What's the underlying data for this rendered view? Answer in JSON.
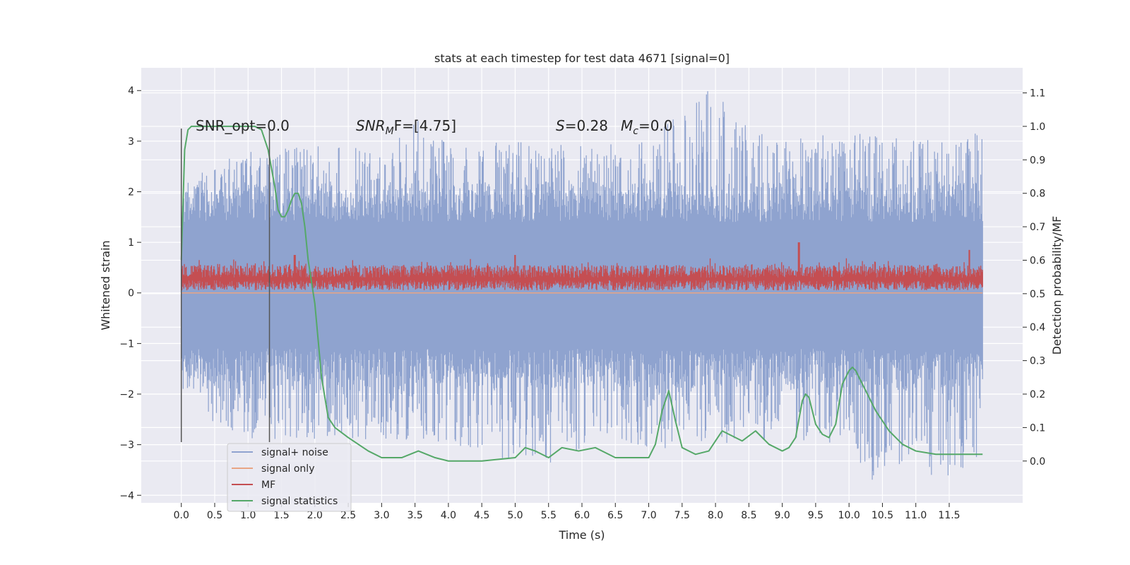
{
  "chart_data": {
    "type": "line",
    "title": "stats at each timestep for test data 4671 [signal=0]",
    "xlabel": "Time (s)",
    "ylabel": "Whitened strain",
    "y2label": "Detection probability/MF",
    "xlim": [
      -0.6,
      12.6
    ],
    "ylim": [
      -4.15,
      4.45
    ],
    "y2lim": [
      -0.125,
      1.175
    ],
    "xticks": [
      0.0,
      0.5,
      1.0,
      1.5,
      2.0,
      2.5,
      3.0,
      3.5,
      4.0,
      4.5,
      5.0,
      5.5,
      6.0,
      6.5,
      7.0,
      7.5,
      8.0,
      8.5,
      9.0,
      9.5,
      10.0,
      10.5,
      11.0,
      11.5
    ],
    "xtick_labels": [
      "0.0",
      "0.5",
      "1.0",
      "1.5",
      "2.0",
      "2.5",
      "3.0",
      "3.5",
      "4.0",
      "4.5",
      "5.0",
      "5.5",
      "6.0",
      "6.5",
      "7.0",
      "7.5",
      "8.0",
      "8.5",
      "9.0",
      "9.5",
      "10.0",
      "10.5",
      "11.0",
      "11.5"
    ],
    "yticks": [
      -4,
      -3,
      -2,
      -1,
      0,
      1,
      2,
      3,
      4
    ],
    "ytick_labels": [
      "−4",
      "−3",
      "−2",
      "−1",
      "0",
      "1",
      "2",
      "3",
      "4"
    ],
    "y2ticks": [
      0.0,
      0.1,
      0.2,
      0.3,
      0.4,
      0.5,
      0.6,
      0.7,
      0.8,
      0.9,
      1.0,
      1.1
    ],
    "y2tick_labels": [
      "0.0",
      "0.1",
      "0.2",
      "0.3",
      "0.4",
      "0.5",
      "0.6",
      "0.7",
      "0.8",
      "0.9",
      "1.0",
      "1.1"
    ],
    "grid": true,
    "legend_position": "lower-left",
    "annotations": {
      "snr_opt": "SNR_opt=0.0",
      "snr_mf_prefix": "SNR",
      "snr_mf_sub": "M",
      "snr_mf_suffix": "F=[4.75]",
      "s_var": "S",
      "s_value": "=0.28",
      "mc_var": "M",
      "mc_sub": "c",
      "mc_value": "=0.0"
    },
    "vlines": [
      0.0,
      1.32
    ],
    "vline_range": [
      -2.95,
      3.25
    ],
    "series": [
      {
        "name": "signal+ noise",
        "color": "#8fa3cf",
        "axis": "left",
        "kind": "noise",
        "x_range": [
          0.0,
          12.0
        ],
        "upper_envelope": [
          [
            0.0,
            2.0
          ],
          [
            0.5,
            2.6
          ],
          [
            1.0,
            2.8
          ],
          [
            2.0,
            2.9
          ],
          [
            3.0,
            2.9
          ],
          [
            3.55,
            3.5
          ],
          [
            4.0,
            2.9
          ],
          [
            5.0,
            3.0
          ],
          [
            6.0,
            2.9
          ],
          [
            7.0,
            3.0
          ],
          [
            7.9,
            4.1
          ],
          [
            8.5,
            3.3
          ],
          [
            9.0,
            3.0
          ],
          [
            10.0,
            3.2
          ],
          [
            11.0,
            3.0
          ],
          [
            12.0,
            3.2
          ]
        ],
        "lower_envelope": [
          [
            0.0,
            -1.5
          ],
          [
            0.5,
            -2.7
          ],
          [
            1.0,
            -2.9
          ],
          [
            2.0,
            -2.9
          ],
          [
            3.0,
            -2.9
          ],
          [
            4.0,
            -3.0
          ],
          [
            4.6,
            -3.2
          ],
          [
            5.3,
            -3.5
          ],
          [
            6.0,
            -3.1
          ],
          [
            7.0,
            -3.1
          ],
          [
            8.0,
            -3.0
          ],
          [
            9.0,
            -2.9
          ],
          [
            10.0,
            -3.0
          ],
          [
            10.3,
            -3.75
          ],
          [
            11.0,
            -3.2
          ],
          [
            11.3,
            -3.8
          ],
          [
            12.0,
            -3.3
          ]
        ],
        "base_band": [
          -1.1,
          1.4
        ]
      },
      {
        "name": "signal only",
        "color": "#e8a584",
        "axis": "left",
        "kind": "flat",
        "value": 0.0,
        "x_range": [
          0.0,
          12.0
        ]
      },
      {
        "name": "MF",
        "color": "#c44e52",
        "axis": "left",
        "kind": "noise_band",
        "x_range": [
          0.0,
          12.0
        ],
        "base_band": [
          0.05,
          0.55
        ],
        "peaks": [
          [
            1.7,
            0.75
          ],
          [
            5.0,
            0.75
          ],
          [
            9.25,
            1.0
          ],
          [
            11.8,
            0.85
          ]
        ]
      },
      {
        "name": "signal statistics",
        "color": "#55a868",
        "axis": "right",
        "kind": "line",
        "x": [
          0.0,
          0.05,
          0.1,
          0.15,
          0.25,
          0.5,
          0.8,
          1.0,
          1.1,
          1.2,
          1.3,
          1.4,
          1.45,
          1.5,
          1.55,
          1.6,
          1.65,
          1.7,
          1.75,
          1.8,
          1.85,
          1.9,
          2.0,
          2.1,
          2.2,
          2.3,
          2.5,
          2.8,
          3.0,
          3.3,
          3.55,
          3.8,
          4.0,
          4.5,
          5.0,
          5.15,
          5.3,
          5.5,
          5.7,
          5.95,
          6.2,
          6.5,
          7.0,
          7.1,
          7.2,
          7.3,
          7.4,
          7.5,
          7.7,
          7.9,
          8.0,
          8.1,
          8.2,
          8.4,
          8.6,
          8.8,
          9.0,
          9.1,
          9.2,
          9.3,
          9.35,
          9.4,
          9.5,
          9.6,
          9.7,
          9.8,
          9.9,
          10.0,
          10.05,
          10.1,
          10.2,
          10.4,
          10.6,
          10.8,
          11.0,
          11.3,
          11.6,
          12.0
        ],
        "values": [
          0.6,
          0.93,
          0.99,
          1.0,
          1.0,
          1.0,
          1.0,
          1.0,
          1.0,
          0.99,
          0.93,
          0.82,
          0.75,
          0.73,
          0.73,
          0.75,
          0.78,
          0.8,
          0.8,
          0.77,
          0.7,
          0.6,
          0.47,
          0.25,
          0.13,
          0.1,
          0.07,
          0.03,
          0.01,
          0.01,
          0.03,
          0.01,
          0.0,
          0.0,
          0.01,
          0.04,
          0.03,
          0.01,
          0.04,
          0.03,
          0.04,
          0.01,
          0.01,
          0.05,
          0.15,
          0.21,
          0.12,
          0.04,
          0.02,
          0.03,
          0.06,
          0.09,
          0.08,
          0.06,
          0.09,
          0.05,
          0.03,
          0.04,
          0.07,
          0.18,
          0.2,
          0.19,
          0.11,
          0.08,
          0.07,
          0.11,
          0.23,
          0.27,
          0.28,
          0.27,
          0.23,
          0.15,
          0.09,
          0.05,
          0.03,
          0.02,
          0.02,
          0.02
        ]
      }
    ]
  }
}
